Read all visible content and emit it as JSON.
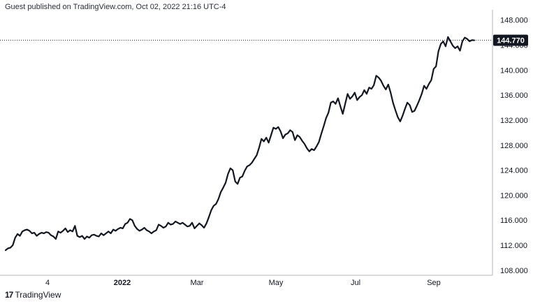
{
  "header": {
    "published": "Guest published on TradingView.com, Oct 02, 2022 21:16 UTC-4"
  },
  "brand": {
    "icon": "tradingview-logo-icon",
    "name": "TradingView"
  },
  "colors": {
    "line": "#131722",
    "grid": "#e0e3eb",
    "tag": "#131722"
  },
  "chart_data": {
    "type": "line",
    "title": "",
    "xlabel": "",
    "ylabel": "",
    "ylim": [
      107.2,
      149.2
    ],
    "y_ticks": [
      "108.000",
      "112.000",
      "116.000",
      "120.000",
      "124.000",
      "128.000",
      "132.000",
      "136.000",
      "140.000",
      "144.000",
      "148.000"
    ],
    "x_ticks": [
      "4",
      "2022",
      "Mar",
      "May",
      "Jul",
      "Sep"
    ],
    "last_price": 144.77,
    "last_price_label": "144.770",
    "grid": false,
    "series": [
      {
        "name": "",
        "values": [
          111.2,
          111.5,
          111.6,
          112.0,
          113.2,
          113.8,
          113.5,
          114.2,
          114.4,
          114.5,
          114.3,
          113.9,
          114.0,
          113.5,
          113.8,
          114.0,
          113.9,
          114.1,
          114.0,
          113.6,
          113.4,
          113.0,
          114.2,
          114.0,
          114.3,
          114.7,
          114.1,
          114.4,
          114.2,
          115.1,
          113.5,
          113.3,
          113.5,
          113.0,
          113.4,
          113.2,
          113.6,
          113.7,
          113.5,
          113.4,
          113.9,
          113.6,
          113.9,
          114.2,
          113.9,
          114.5,
          114.3,
          114.6,
          114.8,
          114.7,
          115.4,
          115.6,
          116.2,
          116.0,
          115.1,
          114.6,
          114.3,
          114.5,
          114.8,
          114.4,
          114.2,
          113.9,
          114.2,
          114.4,
          115.3,
          115.1,
          114.8,
          115.0,
          115.6,
          115.3,
          115.4,
          115.8,
          115.6,
          115.4,
          115.6,
          115.3,
          115.0,
          115.1,
          115.6,
          114.7,
          115.1,
          115.5,
          115.2,
          114.8,
          115.5,
          116.5,
          117.6,
          118.3,
          118.6,
          119.4,
          120.5,
          121.2,
          122.0,
          123.4,
          124.3,
          124.0,
          122.2,
          121.8,
          122.8,
          123.0,
          123.9,
          124.6,
          124.8,
          125.2,
          125.8,
          126.4,
          127.6,
          129.0,
          128.6,
          129.2,
          128.4,
          129.6,
          130.8,
          130.6,
          130.9,
          130.2,
          129.1,
          129.7,
          129.9,
          130.4,
          130.1,
          128.8,
          129.6,
          129.3,
          128.7,
          128.2,
          127.5,
          127.0,
          127.4,
          127.2,
          127.8,
          128.5,
          129.8,
          131.0,
          132.3,
          133.2,
          134.8,
          135.0,
          134.6,
          135.5,
          134.2,
          133.0,
          134.6,
          136.2,
          135.4,
          135.8,
          136.4,
          135.2,
          135.7,
          136.0,
          136.8,
          136.2,
          137.2,
          137.0,
          137.6,
          139.1,
          138.8,
          138.3,
          137.5,
          136.9,
          137.7,
          136.4,
          134.8,
          133.6,
          132.5,
          131.8,
          132.7,
          133.8,
          134.8,
          134.4,
          133.3,
          133.5,
          134.3,
          135.2,
          136.2,
          137.5,
          137.0,
          137.8,
          138.4,
          140.2,
          140.6,
          143.0,
          144.2,
          144.6,
          143.8,
          145.3,
          144.6,
          143.9,
          143.5,
          143.8,
          143.1,
          144.6,
          145.2,
          145.0,
          144.6,
          144.8,
          144.77
        ]
      }
    ]
  }
}
